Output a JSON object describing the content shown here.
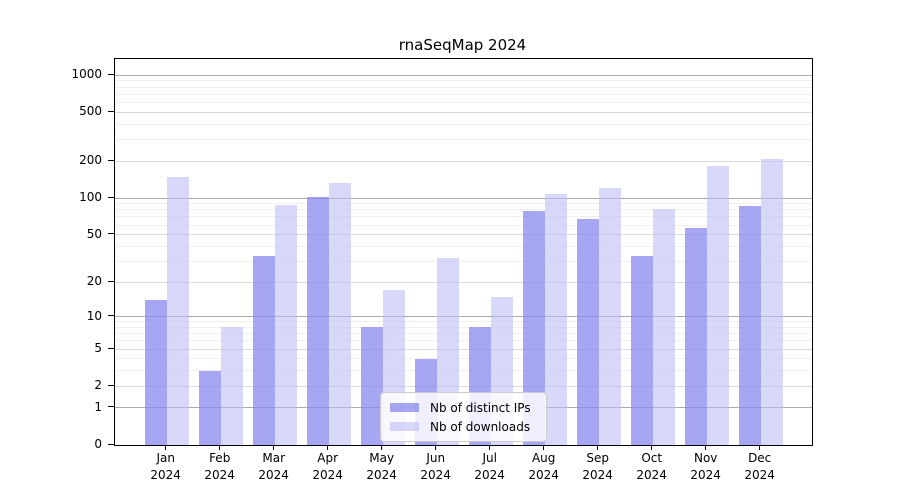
{
  "chart_data": {
    "type": "bar",
    "title": "rnaSeqMap 2024",
    "xlabel": "",
    "ylabel": "",
    "year": "2024",
    "months": [
      "Jan",
      "Feb",
      "Mar",
      "Apr",
      "May",
      "Jun",
      "Jul",
      "Aug",
      "Sep",
      "Oct",
      "Nov",
      "Dec"
    ],
    "categories": [
      "Jan 2024",
      "Feb 2024",
      "Mar 2024",
      "Apr 2024",
      "May 2024",
      "Jun 2024",
      "Jul 2024",
      "Aug 2024",
      "Sep 2024",
      "Oct 2024",
      "Nov 2024",
      "Dec 2024"
    ],
    "series": [
      {
        "name": "Nb of distinct IPs",
        "color": "#8888EE",
        "fill_rgba": "rgba(136,136,238,0.75)",
        "values": [
          14,
          3,
          33,
          102,
          8,
          4,
          8,
          79,
          67,
          33,
          57,
          86
        ]
      },
      {
        "name": "Nb of downloads",
        "color": "#BBBBF7",
        "fill_rgba": "rgba(187,187,247,0.57)",
        "values": [
          150,
          8,
          88,
          132,
          17,
          32,
          15,
          109,
          120,
          82,
          184,
          210
        ]
      }
    ],
    "yscale": "log1p",
    "ylim": [
      0,
      1349
    ],
    "yticks": [
      0,
      1,
      2,
      5,
      10,
      20,
      50,
      100,
      200,
      500,
      1000
    ],
    "ytick_labels": [
      "0",
      "1",
      "2",
      "5",
      "10",
      "20",
      "50",
      "100",
      "200",
      "500",
      "1000"
    ],
    "gridlines": {
      "major": [
        1,
        10,
        100,
        1000
      ],
      "mid": [
        2,
        5,
        20,
        50,
        200,
        500
      ],
      "minor": [
        3,
        4,
        6,
        7,
        8,
        9,
        30,
        40,
        60,
        70,
        80,
        90,
        300,
        400,
        600,
        700,
        800,
        900
      ]
    },
    "grid_colors": {
      "major": "#ABABAB",
      "mid": "#DADADA",
      "minor": "#F0F0F0"
    },
    "legend_position": "lower center",
    "grid": "on"
  }
}
